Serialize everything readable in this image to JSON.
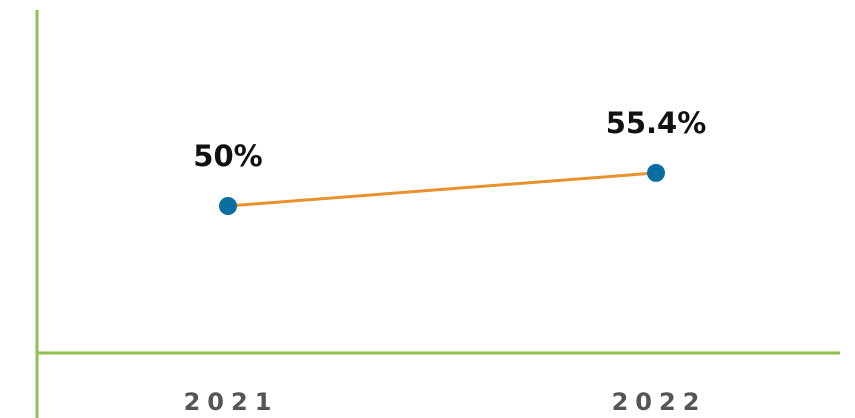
{
  "chart_data": {
    "type": "line",
    "categories": [
      "2021",
      "2022"
    ],
    "values": [
      50,
      55.4
    ],
    "value_labels": [
      "50%",
      "55.4%"
    ],
    "color": "#e8922e",
    "marker_color": "#0a6fa0",
    "axis_color": "#8dc152",
    "ylim": [
      26,
      82
    ]
  }
}
